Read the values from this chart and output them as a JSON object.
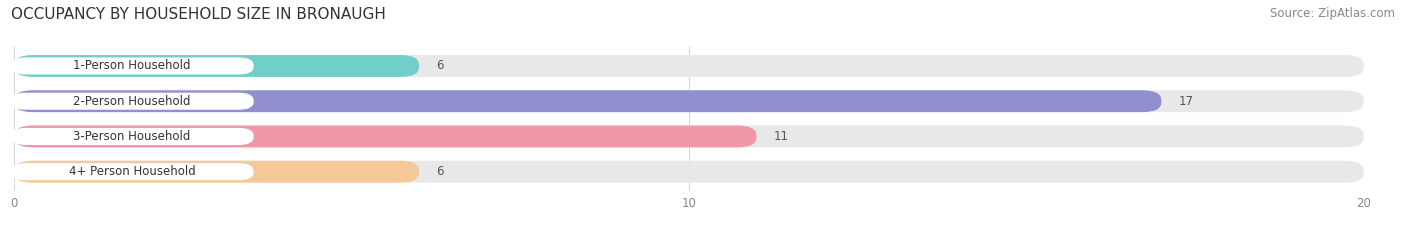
{
  "title": "OCCUPANCY BY HOUSEHOLD SIZE IN BRONAUGH",
  "source": "Source: ZipAtlas.com",
  "categories": [
    "1-Person Household",
    "2-Person Household",
    "3-Person Household",
    "4+ Person Household"
  ],
  "values": [
    6,
    17,
    11,
    6
  ],
  "bar_colors": [
    "#72CEC9",
    "#9090D0",
    "#F098AA",
    "#F5C898"
  ],
  "bar_bg_color": "#E8E8E8",
  "label_bg_color": "#FFFFFF",
  "xlim": [
    0,
    20
  ],
  "xticks": [
    0,
    10,
    20
  ],
  "figsize": [
    14.06,
    2.33
  ],
  "dpi": 100,
  "title_fontsize": 11,
  "label_fontsize": 8.5,
  "value_fontsize": 8.5,
  "source_fontsize": 8.5
}
